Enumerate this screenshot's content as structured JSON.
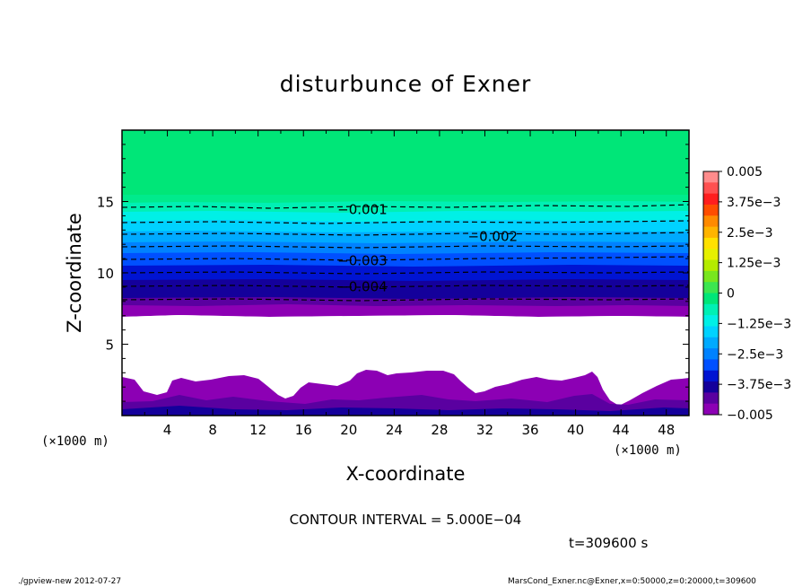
{
  "chart_data": {
    "type": "heatmap",
    "title": "disturbunce of Exner",
    "xlabel": "X-coordinate",
    "ylabel": "Z-coordinate",
    "x_unit_note": "(×1000 m)",
    "y_unit_note": "(×1000 m)",
    "xlim": [
      0,
      50
    ],
    "ylim": [
      0,
      20
    ],
    "x_ticks": [
      "4",
      "8",
      "12",
      "16",
      "20",
      "24",
      "28",
      "32",
      "36",
      "40",
      "44",
      "48"
    ],
    "y_ticks": [
      "5",
      "10",
      "15"
    ],
    "contour_labels": [
      {
        "text": "−0.001",
        "x": 19,
        "z": 14.5
      },
      {
        "text": "−0.002",
        "x": 30.5,
        "z": 12.6
      },
      {
        "text": "−0.003",
        "x": 19,
        "z": 10.9
      },
      {
        "text": "−0.004",
        "x": 19,
        "z": 9.1
      }
    ],
    "colorbar": {
      "labels": [
        "0.005",
        "3.75e−3",
        "2.5e−3",
        "1.25e−3",
        "0",
        "−1.25e−3",
        "−2.5e−3",
        "−3.75e−3",
        "−0.005"
      ],
      "colors": [
        "#ff8c8c",
        "#ff5050",
        "#ff1e1e",
        "#ff4d00",
        "#ff8a00",
        "#ffb400",
        "#ffe100",
        "#e6f000",
        "#b4eb00",
        "#78e61e",
        "#3ce650",
        "#00e678",
        "#00f0b4",
        "#00f0e6",
        "#00d2ff",
        "#00aaff",
        "#0082ff",
        "#0050ff",
        "#0014d2",
        "#14009b",
        "#5a00a0",
        "#8c00b4"
      ]
    },
    "contour_interval": "CONTOUR INTERVAL = 5.000E−04",
    "time": "t=309600 s"
  },
  "footer": {
    "left": "./gpview-new   2012-07-27",
    "right": "MarsCond_Exner.nc@Exner,x=0:50000,z=0:20000,t=309600"
  }
}
